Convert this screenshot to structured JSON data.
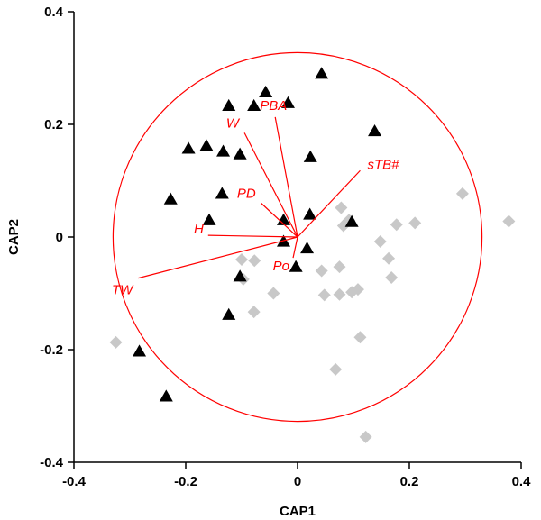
{
  "chart_data": {
    "type": "scatter",
    "xlabel": "CAP1",
    "ylabel": "CAP2",
    "xlim": [
      -0.4,
      0.4
    ],
    "ylim": [
      -0.4,
      0.4
    ],
    "xticks": [
      "-0.4",
      "-0.2",
      "0",
      "0.2",
      "0.4"
    ],
    "yticks": [
      "-0.4",
      "-0.2",
      "0",
      "0.2",
      "0.4"
    ],
    "grid": false,
    "colors": {
      "triangles": "#000000",
      "diamonds": "#c8c8c8",
      "vectors": "#ff0000"
    },
    "series": [
      {
        "marker": "triangle",
        "points": [
          [
            0.043,
            0.29
          ],
          [
            -0.057,
            0.257
          ],
          [
            -0.078,
            0.233
          ],
          [
            -0.123,
            0.233
          ],
          [
            -0.017,
            0.238
          ],
          [
            0.138,
            0.188
          ],
          [
            -0.195,
            0.157
          ],
          [
            -0.163,
            0.162
          ],
          [
            -0.133,
            0.152
          ],
          [
            -0.103,
            0.147
          ],
          [
            0.023,
            0.142
          ],
          [
            -0.227,
            0.067
          ],
          [
            -0.135,
            0.077
          ],
          [
            -0.158,
            0.03
          ],
          [
            -0.025,
            0.03
          ],
          [
            0.022,
            0.04
          ],
          [
            0.097,
            0.027
          ],
          [
            -0.025,
            -0.008
          ],
          [
            0.017,
            -0.02
          ],
          [
            -0.003,
            -0.053
          ],
          [
            -0.103,
            -0.07
          ],
          [
            -0.123,
            -0.138
          ],
          [
            -0.283,
            -0.203
          ],
          [
            -0.235,
            -0.283
          ]
        ]
      },
      {
        "marker": "diamond",
        "points": [
          [
            0.295,
            0.077
          ],
          [
            0.378,
            0.028
          ],
          [
            0.078,
            0.052
          ],
          [
            0.177,
            0.022
          ],
          [
            0.21,
            0.025
          ],
          [
            0.092,
            0.03
          ],
          [
            0.082,
            0.02
          ],
          [
            0.148,
            -0.008
          ],
          [
            0.163,
            -0.038
          ],
          [
            0.168,
            -0.072
          ],
          [
            0.075,
            -0.053
          ],
          [
            0.043,
            -0.06
          ],
          [
            0.097,
            -0.098
          ],
          [
            0.108,
            -0.093
          ],
          [
            0.048,
            -0.103
          ],
          [
            0.075,
            -0.102
          ],
          [
            0.112,
            -0.178
          ],
          [
            0.068,
            -0.235
          ],
          [
            0.122,
            -0.355
          ],
          [
            -0.325,
            -0.187
          ],
          [
            -0.078,
            -0.133
          ],
          [
            -0.043,
            -0.1
          ],
          [
            -0.097,
            -0.075
          ],
          [
            -0.077,
            -0.042
          ],
          [
            -0.1,
            -0.04
          ]
        ]
      }
    ],
    "vectors": [
      {
        "label": "PBA",
        "x": -0.04,
        "y": 0.213
      },
      {
        "label": "W",
        "x": -0.095,
        "y": 0.185
      },
      {
        "label": "sTB#",
        "x": 0.112,
        "y": 0.118
      },
      {
        "label": "PD",
        "x": -0.065,
        "y": 0.06
      },
      {
        "label": "H",
        "x": -0.16,
        "y": 0.003
      },
      {
        "label": "TW",
        "x": -0.285,
        "y": -0.073
      },
      {
        "label": "Po",
        "x": -0.008,
        "y": -0.037
      }
    ],
    "circle_radius": 0.33
  }
}
